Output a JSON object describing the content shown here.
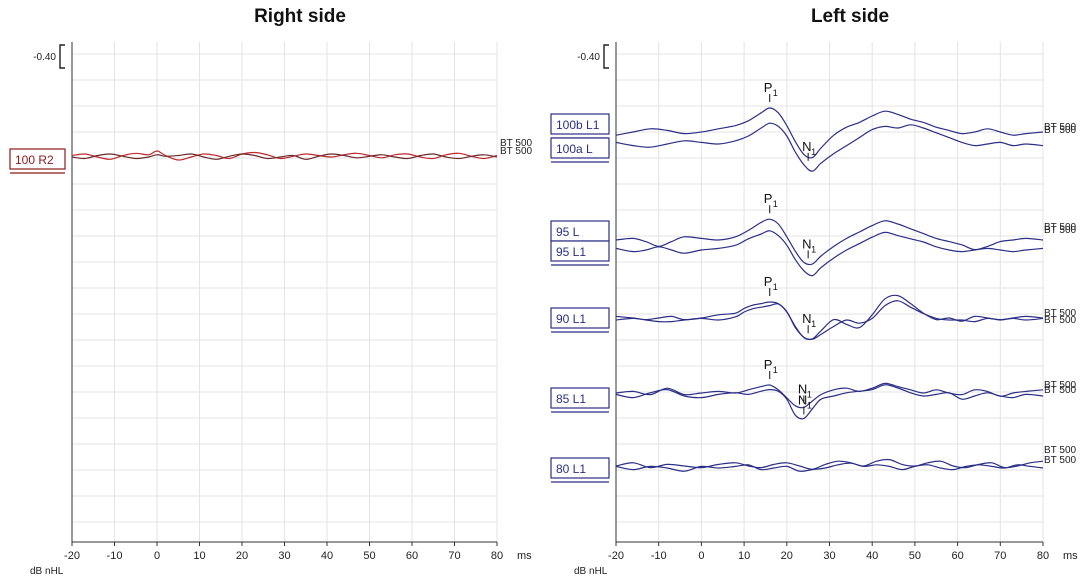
{
  "chart_data": [
    {
      "type": "line",
      "title": "Right side",
      "x_unit": "ms",
      "y_unit_label": "dB nHL",
      "scale_label": "-0.40",
      "xlim": [
        -20,
        80
      ],
      "xticks": [
        "-20",
        "-10",
        "0",
        "10",
        "20",
        "30",
        "40",
        "50",
        "60",
        "70",
        "80"
      ],
      "grid": true,
      "color": "#c0282d",
      "traces": [
        {
          "level_label": "100 R2",
          "right_label": "BT 500",
          "peaks": [],
          "x": [
            -20,
            -17,
            -14,
            -11,
            -8,
            -5,
            -2,
            0,
            2,
            5,
            8,
            11,
            14,
            17,
            20,
            23,
            26,
            29,
            32,
            35,
            38,
            41,
            44,
            47,
            50,
            53,
            56,
            59,
            62,
            65,
            68,
            71,
            74,
            77,
            80
          ],
          "y": [
            1.0,
            2.0,
            0.0,
            -1.5,
            1.0,
            2.5,
            1.5,
            4.0,
            1.0,
            -2.0,
            0.0,
            2.0,
            1.0,
            -1.0,
            2.0,
            3.0,
            1.5,
            -1.0,
            0.5,
            2.0,
            1.0,
            0.0,
            1.5,
            2.5,
            1.0,
            -0.5,
            1.5,
            2.0,
            0.0,
            -1.0,
            1.5,
            2.5,
            0.5,
            -1.0,
            1.0
          ]
        },
        {
          "level_label": "",
          "right_label": "BT 500",
          "peaks": [],
          "x": [
            -20,
            -17,
            -14,
            -11,
            -8,
            -5,
            -2,
            0,
            2,
            5,
            8,
            11,
            14,
            17,
            20,
            23,
            26,
            29,
            32,
            35,
            38,
            41,
            44,
            47,
            50,
            53,
            56,
            59,
            62,
            65,
            68,
            71,
            74,
            77,
            80
          ],
          "y": [
            0.0,
            -1.0,
            1.0,
            2.0,
            0.5,
            -1.0,
            0.0,
            1.5,
            0.5,
            1.0,
            2.0,
            0.0,
            -1.5,
            0.5,
            2.0,
            1.0,
            -1.0,
            0.0,
            1.0,
            -1.5,
            0.5,
            2.0,
            1.0,
            -0.5,
            0.5,
            1.5,
            0.0,
            -1.0,
            1.0,
            2.0,
            0.0,
            -1.0,
            0.5,
            1.5,
            0.0
          ]
        }
      ]
    },
    {
      "type": "line",
      "title": "Left side",
      "x_unit": "ms",
      "y_unit_label": "dB nHL",
      "scale_label": "-0.40",
      "xlim": [
        -20,
        80
      ],
      "xticks": [
        "-20",
        "-10",
        "0",
        "10",
        "20",
        "30",
        "40",
        "50",
        "60",
        "70",
        "80"
      ],
      "grid": true,
      "color": "#2b2f86",
      "traces": [
        {
          "level_label": "100b L1",
          "right_label": "BT 500",
          "peaks": [
            {
              "label": "P",
              "sub": "1",
              "x": 16
            }
          ],
          "x": [
            -20,
            -16,
            -12,
            -8,
            -4,
            0,
            4,
            8,
            11,
            14,
            16,
            18,
            20,
            22,
            24,
            26,
            28,
            31,
            34,
            37,
            40,
            43,
            46,
            49,
            52,
            55,
            58,
            61,
            64,
            67,
            70,
            73,
            76,
            80
          ],
          "y": [
            -2,
            0,
            2,
            1,
            -1,
            0,
            2,
            4,
            7,
            12,
            15,
            12,
            4,
            -6,
            -14,
            -16,
            -10,
            -2,
            3,
            6,
            10,
            13,
            11,
            8,
            6,
            3,
            1,
            -1,
            0,
            2,
            0,
            -2,
            -1,
            0
          ]
        },
        {
          "level_label": "100a L",
          "right_label": "BT 500",
          "peaks": [
            {
              "label": "N",
              "sub": "1",
              "x": 25
            }
          ],
          "x": [
            -20,
            -16,
            -12,
            -8,
            -4,
            0,
            4,
            8,
            11,
            14,
            16,
            18,
            20,
            22,
            24,
            26,
            28,
            31,
            34,
            37,
            40,
            43,
            46,
            49,
            52,
            55,
            58,
            61,
            64,
            67,
            70,
            73,
            76,
            80
          ],
          "y": [
            1,
            -1,
            -2,
            0,
            2,
            1,
            0,
            2,
            5,
            10,
            13,
            11,
            5,
            -5,
            -13,
            -17,
            -12,
            -6,
            -1,
            4,
            9,
            11,
            10,
            12,
            10,
            7,
            4,
            1,
            -1,
            0,
            1,
            -1,
            0,
            -1
          ]
        },
        {
          "level_label": "95 L",
          "right_label": "BT 500",
          "peaks": [
            {
              "label": "P",
              "sub": "1",
              "x": 16
            },
            {
              "label": "N",
              "sub": "1",
              "x": 25
            }
          ],
          "x": [
            -20,
            -16,
            -13,
            -10,
            -7,
            -4,
            0,
            4,
            8,
            11,
            14,
            16,
            18,
            20,
            22,
            24,
            26,
            28,
            31,
            34,
            37,
            40,
            43,
            46,
            49,
            52,
            55,
            58,
            61,
            64,
            67,
            70,
            73,
            76,
            80
          ],
          "y": [
            0,
            1,
            -1,
            -4,
            -1,
            2,
            1,
            0,
            2,
            6,
            11,
            13,
            10,
            2,
            -7,
            -14,
            -15,
            -10,
            -4,
            1,
            5,
            9,
            12,
            10,
            7,
            4,
            1,
            -1,
            -3,
            -6,
            -4,
            -1,
            0,
            1,
            0
          ]
        },
        {
          "level_label": "95 L1",
          "right_label": "BT 500",
          "peaks": [],
          "x": [
            -20,
            -16,
            -13,
            -10,
            -7,
            -4,
            0,
            4,
            8,
            11,
            14,
            16,
            18,
            20,
            22,
            24,
            26,
            28,
            31,
            34,
            37,
            40,
            43,
            46,
            49,
            52,
            55,
            58,
            61,
            64,
            67,
            70,
            73,
            76,
            80
          ],
          "y": [
            1,
            -1,
            0,
            2,
            0,
            -2,
            0,
            1,
            3,
            7,
            10,
            12,
            9,
            3,
            -6,
            -13,
            -16,
            -11,
            -5,
            0,
            4,
            8,
            11,
            9,
            7,
            5,
            2,
            0,
            -1,
            0,
            1,
            0,
            -1,
            0,
            1
          ]
        },
        {
          "level_label": "90 L1",
          "right_label": "BT 500",
          "peaks": [
            {
              "label": "P",
              "sub": "1",
              "x": 16
            },
            {
              "label": "N",
              "sub": "1",
              "x": 25
            }
          ],
          "x": [
            -20,
            -16,
            -13,
            -10,
            -7,
            -4,
            0,
            4,
            8,
            10,
            12,
            14,
            16,
            18,
            20,
            22,
            24,
            26,
            28,
            31,
            34,
            37,
            40,
            43,
            46,
            49,
            52,
            55,
            58,
            61,
            64,
            67,
            70,
            73,
            76,
            80
          ],
          "y": [
            1,
            0,
            -1,
            0,
            1,
            -1,
            0,
            2,
            3,
            6,
            8,
            9,
            10,
            9,
            4,
            -6,
            -12,
            -13,
            -8,
            -1,
            -4,
            -6,
            2,
            12,
            14,
            9,
            3,
            -1,
            0,
            -2,
            1,
            0,
            -1,
            0,
            1,
            0
          ]
        },
        {
          "level_label": "",
          "right_label": "BT 500",
          "peaks": [],
          "x": [
            -20,
            -16,
            -13,
            -10,
            -7,
            -4,
            0,
            4,
            8,
            10,
            12,
            14,
            16,
            18,
            20,
            22,
            24,
            26,
            28,
            31,
            34,
            37,
            40,
            43,
            46,
            49,
            52,
            55,
            58,
            61,
            64,
            67,
            70,
            73,
            76,
            80
          ],
          "y": [
            0,
            1,
            0,
            -1,
            -1,
            0,
            1,
            0,
            2,
            5,
            7,
            8,
            9,
            10,
            5,
            -4,
            -11,
            -12,
            -9,
            -4,
            0,
            -2,
            1,
            9,
            12,
            8,
            4,
            1,
            0,
            0,
            -1,
            1,
            0,
            1,
            0,
            1
          ]
        },
        {
          "level_label": "85 L1",
          "right_label": "BT 500",
          "peaks": [
            {
              "label": "P",
              "sub": "1",
              "x": 16
            },
            {
              "label": "N",
              "sub": "1",
              "x": 24
            }
          ],
          "x": [
            -20,
            -16,
            -12,
            -8,
            -4,
            0,
            4,
            8,
            11,
            14,
            16,
            18,
            20,
            22,
            24,
            26,
            28,
            31,
            34,
            37,
            40,
            43,
            46,
            49,
            52,
            55,
            58,
            61,
            64,
            67,
            70,
            73,
            76,
            80
          ],
          "y": [
            0,
            1,
            -1,
            3,
            -1,
            0,
            1,
            0,
            2,
            4,
            5,
            2,
            -3,
            -8,
            -9,
            -5,
            -1,
            2,
            3,
            1,
            3,
            6,
            4,
            2,
            0,
            2,
            0,
            -1,
            2,
            1,
            -2,
            0,
            1,
            2
          ]
        },
        {
          "level_label": "",
          "right_label": "BT 500",
          "peaks": [
            {
              "label": "N",
              "sub": "1",
              "x": 24
            }
          ],
          "x": [
            -20,
            -16,
            -12,
            -8,
            -4,
            0,
            4,
            8,
            11,
            14,
            16,
            18,
            20,
            22,
            24,
            26,
            28,
            31,
            34,
            37,
            40,
            43,
            46,
            49,
            52,
            55,
            58,
            61,
            64,
            67,
            70,
            73,
            76,
            80
          ],
          "y": [
            1,
            -1,
            2,
            4,
            0,
            -1,
            1,
            2,
            1,
            3,
            4,
            3,
            -2,
            -12,
            -14,
            -8,
            -2,
            0,
            2,
            3,
            4,
            7,
            5,
            2,
            0,
            1,
            2,
            -2,
            0,
            2,
            0,
            -1,
            1,
            0
          ]
        },
        {
          "level_label": "80 L1",
          "right_label": "BT 500",
          "peaks": [],
          "x": [
            -20,
            -16,
            -12,
            -8,
            -4,
            0,
            4,
            8,
            11,
            14,
            17,
            20,
            23,
            26,
            29,
            32,
            35,
            38,
            41,
            44,
            47,
            50,
            53,
            56,
            59,
            62,
            65,
            68,
            71,
            74,
            77,
            80
          ],
          "y": [
            0,
            2,
            -1,
            1,
            0,
            -1,
            1,
            2,
            0,
            -1,
            1,
            2,
            0,
            -2,
            1,
            3,
            2,
            0,
            3,
            4,
            1,
            0,
            2,
            3,
            0,
            -1,
            1,
            2,
            -1,
            0,
            2,
            3
          ]
        },
        {
          "level_label": "",
          "right_label": "BT 500",
          "peaks": [],
          "x": [
            -20,
            -16,
            -12,
            -8,
            -4,
            0,
            4,
            8,
            11,
            14,
            17,
            20,
            23,
            26,
            29,
            32,
            35,
            38,
            41,
            44,
            47,
            50,
            53,
            56,
            59,
            62,
            65,
            68,
            71,
            74,
            77,
            80
          ],
          "y": [
            1,
            -1,
            1,
            0,
            -2,
            1,
            0,
            1,
            2,
            -1,
            0,
            1,
            -2,
            -1,
            0,
            2,
            3,
            1,
            2,
            1,
            -1,
            1,
            2,
            0,
            -1,
            1,
            2,
            1,
            0,
            2,
            1,
            0
          ]
        }
      ]
    }
  ]
}
